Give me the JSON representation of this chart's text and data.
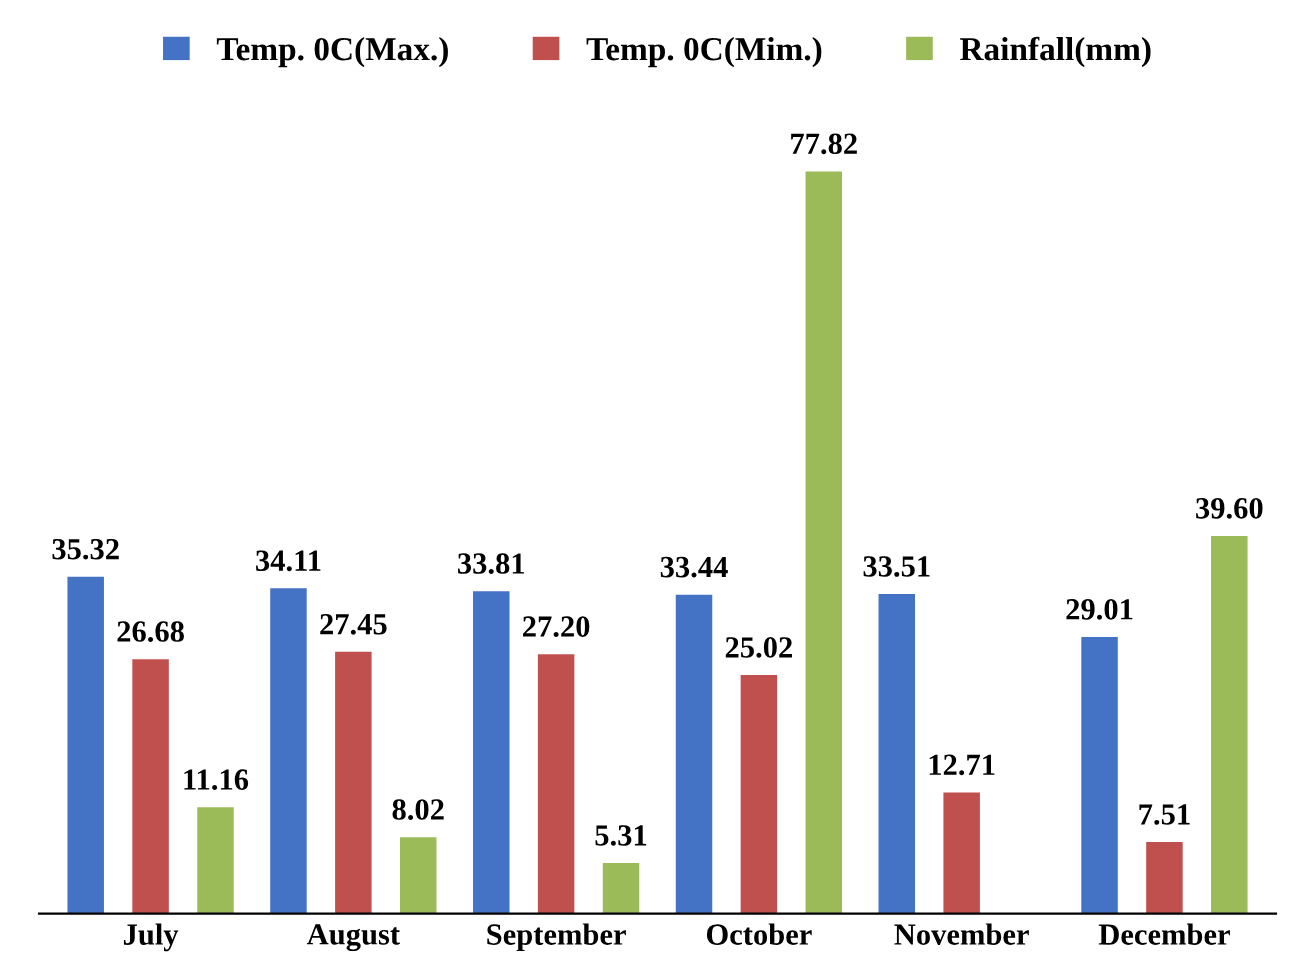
{
  "chart_data": {
    "type": "bar",
    "categories": [
      "July",
      "August",
      "September",
      "October",
      "November",
      "December"
    ],
    "series": [
      {
        "name": "Temp. 0C(Max.)",
        "color": "#4472c4",
        "values": [
          35.32,
          34.11,
          33.81,
          33.44,
          33.51,
          29.01
        ],
        "value_labels": [
          "35.32",
          "34.11",
          "33.81",
          "33.44",
          "33.51",
          "29.01"
        ]
      },
      {
        "name": "Temp. 0C(Mim.)",
        "color": "#c0504d",
        "values": [
          26.68,
          27.45,
          27.2,
          25.02,
          12.71,
          7.51
        ],
        "value_labels": [
          "26.68",
          "27.45",
          "27.20",
          "25.02",
          "12.71",
          "7.51"
        ]
      },
      {
        "name": "Rainfall(mm)",
        "color": "#9bbb59",
        "values": [
          11.16,
          8.02,
          5.31,
          77.82,
          null,
          39.6
        ],
        "value_labels": [
          "11.16",
          "8.02",
          "5.31",
          "77.82",
          null,
          "39.60"
        ]
      }
    ],
    "legend": "top",
    "grid": false
  }
}
